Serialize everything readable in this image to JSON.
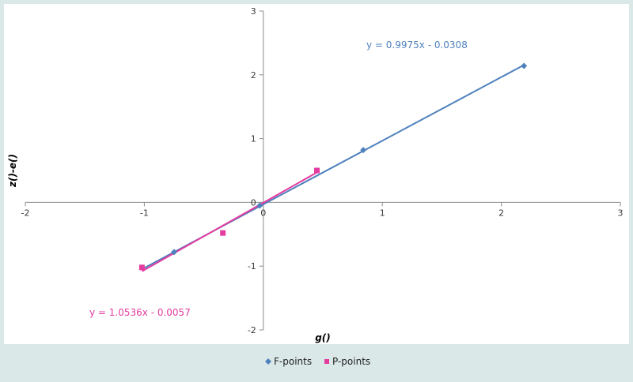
{
  "chart_data": {
    "type": "scatter",
    "title": "",
    "xlabel": "g()",
    "ylabel": "z()-e()",
    "xlim": [
      -2,
      3
    ],
    "ylim": [
      -2,
      3
    ],
    "x_ticks": [
      -2,
      -1,
      0,
      1,
      2,
      3
    ],
    "y_ticks": [
      -2,
      -1,
      0,
      1,
      2,
      3
    ],
    "x_tick_labels": [
      "-2",
      "-1",
      "0",
      "1",
      "2",
      "3"
    ],
    "y_tick_labels": [
      "-2",
      "-1",
      "0",
      "1",
      "2",
      "3"
    ],
    "grid": false,
    "legend_position": "bottom",
    "series": [
      {
        "name": "F-points",
        "color": "#4f81bd",
        "marker": "diamond",
        "x": [
          -0.75,
          -0.03,
          0.84,
          2.19
        ],
        "y": [
          -0.78,
          -0.05,
          0.82,
          2.14
        ],
        "trendline": {
          "slope": 0.9975,
          "intercept": -0.0308,
          "x_range": [
            -1.0,
            2.19
          ]
        },
        "equation": "y = 0.9975x - 0.0308"
      },
      {
        "name": "P-points",
        "color": "#e43ca0",
        "marker": "square",
        "x": [
          -1.02,
          -0.34,
          0.45
        ],
        "y": [
          -1.02,
          -0.48,
          0.5
        ],
        "trendline": {
          "slope": 1.0536,
          "intercept": -0.0057,
          "x_range": [
            -1.02,
            0.45
          ]
        },
        "equation": "y = 1.0536x - 0.0057"
      }
    ]
  }
}
